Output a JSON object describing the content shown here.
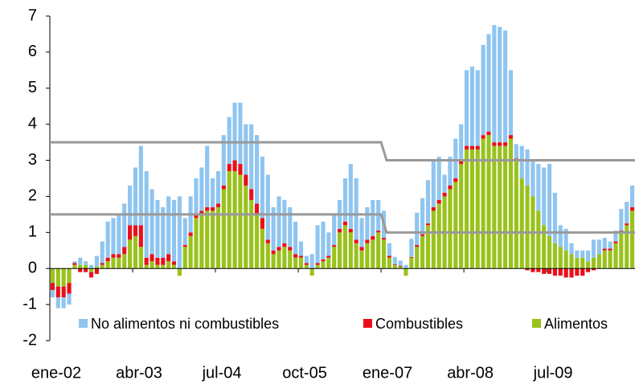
{
  "chart_data": {
    "type": "stacked_bar",
    "categories": [
      "ene-02",
      null,
      null,
      null,
      null,
      null,
      null,
      null,
      null,
      null,
      null,
      null,
      null,
      null,
      null,
      "abr-03",
      null,
      null,
      null,
      null,
      null,
      null,
      null,
      null,
      null,
      null,
      null,
      null,
      null,
      null,
      "jul-04",
      null,
      null,
      null,
      null,
      null,
      null,
      null,
      null,
      null,
      null,
      null,
      null,
      null,
      null,
      "oct-05",
      null,
      null,
      null,
      null,
      null,
      null,
      null,
      null,
      null,
      null,
      null,
      null,
      null,
      null,
      "ene-07",
      null,
      null,
      null,
      null,
      null,
      null,
      null,
      null,
      null,
      null,
      null,
      null,
      null,
      null,
      "abr-08",
      null,
      null,
      null,
      null,
      null,
      null,
      null,
      null,
      null,
      null,
      null,
      null,
      null,
      null,
      "jul-09",
      null,
      null,
      null,
      null,
      null,
      null,
      null,
      null,
      null,
      null,
      null,
      null,
      null,
      null,
      null
    ],
    "series": [
      {
        "name": "No alimentos ni combustibles",
        "color": "#8fc5f0",
        "values": [
          -0.2,
          -0.3,
          -0.3,
          -0.3,
          0.05,
          0.2,
          0.1,
          0.1,
          0.3,
          0.6,
          1.0,
          1.0,
          1.1,
          1.2,
          1.1,
          1.6,
          2.2,
          2.4,
          1.8,
          1.6,
          1.4,
          1.6,
          1.7,
          2.0,
          0.75,
          1.0,
          1.0,
          1.2,
          1.7,
          0.8,
          0.9,
          1.4,
          1.3,
          1.6,
          1.7,
          1.4,
          1.8,
          1.9,
          1.7,
          1.8,
          1.2,
          1.4,
          1.2,
          1.1,
          0.9,
          0.4,
          0.2,
          0.4,
          1.05,
          1.05,
          0.65,
          0.85,
          0.8,
          1.2,
          1.8,
          1.7,
          0.8,
          0.9,
          1.0,
          0.85,
          0.75,
          0.35,
          0.2,
          0.15,
          0.1,
          0.5,
          0.9,
          1.0,
          1.2,
          1.3,
          1.2,
          0.5,
          0.8,
          1.1,
          1.0,
          2.1,
          2.2,
          2.1,
          2.5,
          2.7,
          3.25,
          3.2,
          3.1,
          1.8,
          0.4,
          0.9,
          1.0,
          1.0,
          1.3,
          1.6,
          2.0,
          1.4,
          0.6,
          0.6,
          0.3,
          0.2,
          0.2,
          0.3,
          0.5,
          0.4,
          0.3,
          0.2,
          0.3,
          0.6,
          0.6,
          0.6
        ]
      },
      {
        "name": "Combustibles",
        "color": "#e8101a",
        "values": [
          -0.2,
          -0.3,
          -0.3,
          -0.3,
          0.05,
          -0.1,
          -0.1,
          -0.15,
          -0.15,
          0.05,
          0.1,
          0.1,
          0.1,
          0.2,
          0.4,
          0.3,
          0.6,
          0.2,
          0.2,
          0.2,
          0.2,
          0.2,
          0.1,
          0,
          0.05,
          0.1,
          0.1,
          0.1,
          0.1,
          0.1,
          0.1,
          0.1,
          0.2,
          0.3,
          0.3,
          0.3,
          0.3,
          0.3,
          0.3,
          0.1,
          0.1,
          0.1,
          0.1,
          0.1,
          0.1,
          0.05,
          0.05,
          0,
          0.05,
          0.05,
          0.05,
          0.05,
          0.1,
          0.1,
          0.1,
          0.1,
          0.1,
          0.1,
          0.1,
          0.05,
          0.05,
          0.05,
          0.02,
          0.02,
          0,
          0.02,
          0.05,
          0.05,
          0.05,
          0.1,
          0.1,
          0.1,
          0.1,
          0.1,
          0.1,
          0.1,
          0.1,
          0.1,
          0.1,
          0.1,
          0.1,
          0.1,
          0.1,
          0.1,
          0.05,
          0,
          -0.05,
          -0.1,
          -0.1,
          -0.15,
          -0.15,
          -0.2,
          -0.2,
          -0.25,
          -0.25,
          -0.2,
          -0.2,
          -0.1,
          -0.05,
          0,
          0.05,
          0.05,
          0.05,
          0.05,
          0.05,
          0.1
        ]
      },
      {
        "name": "Alimentos",
        "color": "#99c21c",
        "values": [
          -0.4,
          -0.5,
          -0.5,
          -0.4,
          0.1,
          0.1,
          0.1,
          -0.1,
          0.05,
          0.1,
          0.2,
          0.3,
          0.3,
          0.4,
          0.8,
          0.9,
          0.6,
          0.1,
          0.2,
          0.1,
          0.1,
          0.2,
          0.1,
          -0.2,
          0.6,
          0.9,
          1.4,
          1.5,
          1.6,
          1.6,
          1.7,
          2.2,
          2.7,
          2.7,
          2.6,
          2.3,
          1.9,
          1.5,
          1.1,
          0.7,
          0.4,
          0.5,
          0.6,
          0.5,
          0.3,
          0.3,
          0.1,
          -0.2,
          0.1,
          0.2,
          0.3,
          0.6,
          1.0,
          1.2,
          1.0,
          0.7,
          0.5,
          0.7,
          0.8,
          1.0,
          0.8,
          0.3,
          0.1,
          0.05,
          -0.2,
          0.3,
          0.6,
          0.9,
          1.2,
          1.6,
          1.8,
          2.0,
          2.2,
          2.4,
          2.9,
          3.3,
          3.3,
          3.3,
          3.6,
          3.7,
          3.4,
          3.4,
          3.4,
          3.6,
          3.0,
          2.5,
          2.3,
          2.0,
          1.6,
          1.2,
          0.9,
          0.7,
          0.6,
          0.5,
          0.4,
          0.3,
          0.3,
          0.2,
          0.3,
          0.4,
          0.5,
          0.5,
          0.7,
          1.0,
          1.2,
          1.6
        ]
      }
    ],
    "reference_lines": [
      {
        "color": "#999999",
        "segments": [
          {
            "start": 0,
            "end": 60,
            "value": 3.5
          },
          {
            "start": 61,
            "end": 106,
            "value": 3
          }
        ]
      },
      {
        "color": "#999999",
        "segments": [
          {
            "start": 0,
            "end": 60,
            "value": 1.5
          },
          {
            "start": 61,
            "end": 106,
            "value": 1
          }
        ]
      }
    ],
    "ylim": [
      -2,
      7
    ],
    "yticks": [
      -2,
      -1,
      0,
      1,
      2,
      3,
      4,
      5,
      6,
      7
    ],
    "legend": "bottom-left"
  }
}
